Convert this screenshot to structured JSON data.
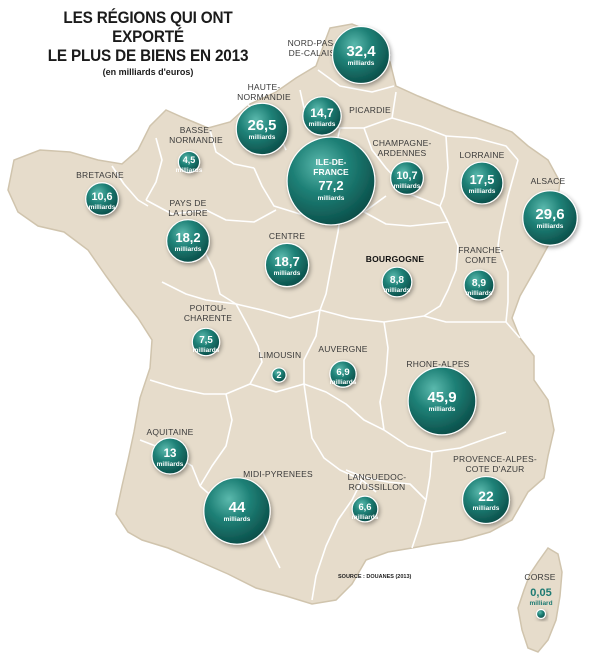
{
  "title": {
    "line1": "LES RÉGIONS QUI ONT EXPORTÉ",
    "line2": "LE PLUS DE BIENS EN 2013",
    "subtitle": "(en milliards d'euros)"
  },
  "source": "SOURCE : DOUANES (2013)",
  "colors": {
    "land": "#e6dccb",
    "border": "#ffffff",
    "outline": "#cfc3ad",
    "bubble": "#1d7a72",
    "bubble_dark": "#0f5a54",
    "bubble_light": "#4fb0a5"
  },
  "unit_plural": "milliards",
  "unit_singular": "milliard",
  "regions": [
    {
      "id": "nord-pas-de-calais",
      "label": [
        "NORD-PAS-",
        "DE-CALAIS"
      ],
      "value": "32,4",
      "amount": 32.4,
      "unit": "milliards"
    },
    {
      "id": "haute-normandie",
      "label": [
        "HAUTE-",
        "NORMANDIE"
      ],
      "value": "26,5",
      "amount": 26.5,
      "unit": "milliards"
    },
    {
      "id": "picardie",
      "label": [
        "PICARDIE"
      ],
      "value": "14,7",
      "amount": 14.7,
      "unit": "milliards"
    },
    {
      "id": "basse-normandie",
      "label": [
        "BASSE-",
        "NORMANDIE"
      ],
      "value": "4,5",
      "amount": 4.5,
      "unit": "milliards"
    },
    {
      "id": "champagne-ardennes",
      "label": [
        "CHAMPAGNE-",
        "ARDENNES"
      ],
      "value": "10,7",
      "amount": 10.7,
      "unit": "milliards"
    },
    {
      "id": "lorraine",
      "label": [
        "LORRAINE"
      ],
      "value": "17,5",
      "amount": 17.5,
      "unit": "milliards"
    },
    {
      "id": "bretagne",
      "label": [
        "BRETAGNE"
      ],
      "value": "10,6",
      "amount": 10.6,
      "unit": "milliards"
    },
    {
      "id": "ile-de-france",
      "label": [
        "ILE-DE-",
        "FRANCE"
      ],
      "value": "77,2",
      "amount": 77.2,
      "unit": "milliards",
      "label_inside": true
    },
    {
      "id": "alsace",
      "label": [
        "ALSACE"
      ],
      "value": "29,6",
      "amount": 29.6,
      "unit": "milliards"
    },
    {
      "id": "pays-de-la-loire",
      "label": [
        "PAYS DE",
        "LA LOIRE"
      ],
      "value": "18,2",
      "amount": 18.2,
      "unit": "milliards"
    },
    {
      "id": "centre",
      "label": [
        "CENTRE"
      ],
      "value": "18,7",
      "amount": 18.7,
      "unit": "milliards"
    },
    {
      "id": "bourgogne",
      "label": [
        "BOURGOGNE"
      ],
      "value": "8,8",
      "amount": 8.8,
      "unit": "milliards",
      "bold": true
    },
    {
      "id": "franche-comte",
      "label": [
        "FRANCHE-",
        "COMTE"
      ],
      "value": "8,9",
      "amount": 8.9,
      "unit": "milliards"
    },
    {
      "id": "poitou-charente",
      "label": [
        "POITOU-",
        "CHARENTE"
      ],
      "value": "7,5",
      "amount": 7.5,
      "unit": "milliards"
    },
    {
      "id": "limousin",
      "label": [
        "LIMOUSIN"
      ],
      "value": "2",
      "amount": 2,
      "unit": ""
    },
    {
      "id": "auvergne",
      "label": [
        "AUVERGNE"
      ],
      "value": "6,9",
      "amount": 6.9,
      "unit": "milliards"
    },
    {
      "id": "rhone-alpes",
      "label": [
        "RHONE-ALPES"
      ],
      "value": "45,9",
      "amount": 45.9,
      "unit": "milliards"
    },
    {
      "id": "aquitaine",
      "label": [
        "AQUITAINE"
      ],
      "value": "13",
      "amount": 13,
      "unit": "milliards"
    },
    {
      "id": "midi-pyrenees",
      "label": [
        "MIDI-PYRENEES"
      ],
      "value": "44",
      "amount": 44,
      "unit": "milliards"
    },
    {
      "id": "languedoc-roussillon",
      "label": [
        "LANGUEDOC-",
        "ROUSSILLON"
      ],
      "value": "6,6",
      "amount": 6.6,
      "unit": "milliards"
    },
    {
      "id": "provence-alpes-cote-dazur",
      "label": [
        "PROVENCE-ALPES-",
        "COTE D'AZUR"
      ],
      "value": "22",
      "amount": 22,
      "unit": "milliards"
    },
    {
      "id": "corse",
      "label": [
        "CORSE"
      ],
      "value": "0,05",
      "amount": 0.05,
      "unit": "milliard",
      "value_outside": true
    }
  ]
}
